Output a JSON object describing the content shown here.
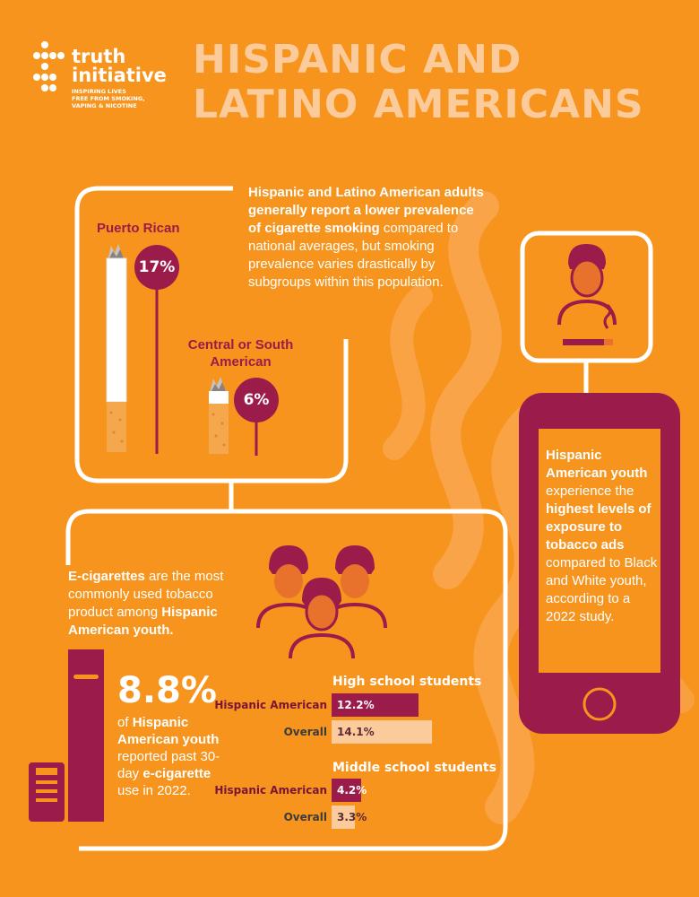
{
  "brand": {
    "name_line1": "truth",
    "name_line2": "initiative",
    "tagline": [
      "INSPIRING LIVES",
      "FREE FROM SMOKING,",
      "VAPING & NICOTINE"
    ],
    "logo": "truth-initiative-dots-logo"
  },
  "title": {
    "line1": "HISPANIC AND",
    "line2": "LATINO AMERICANS"
  },
  "adult_smoking": {
    "description_bold": "Hispanic and Latino American adults generally report a lower prevalence of cigarette smoking",
    "description_regular": " compared to national averages, but smoking prevalence varies drastically by subgroups within this population.",
    "groups": [
      {
        "label": "Puerto Rican",
        "value": "17%",
        "percent": 17
      },
      {
        "label": "Central or South American",
        "value": "6%",
        "percent": 6
      }
    ]
  },
  "ads": {
    "t1": "Hispanic American youth",
    "t2": " experience the ",
    "t3": "highest levels of exposure to tobacco ads",
    "t4": " compared to Black and White youth, according to a 2022 study."
  },
  "ecig": {
    "intro_bold1": "E-cigarettes",
    "intro_reg1": " are the most commonly used tobacco product among ",
    "intro_bold2": "Hispanic American youth.",
    "stat": "8.8%",
    "stat_text_reg1": "of ",
    "stat_text_bold1": "Hispanic American youth",
    "stat_text_reg2": " reported past 30-day ",
    "stat_text_bold2": "e-cigarette",
    "stat_text_reg3": " use in 2022."
  },
  "chart_data": [
    {
      "type": "bar",
      "title": "High school students",
      "categories": [
        "Hispanic American",
        "Overall"
      ],
      "values": [
        12.2,
        14.1
      ],
      "labels": [
        "12.2%",
        "14.1%"
      ]
    },
    {
      "type": "bar",
      "title": "Middle school students",
      "categories": [
        "Hispanic American",
        "Overall"
      ],
      "values": [
        4.2,
        3.3
      ],
      "labels": [
        "4.2%",
        "3.3%"
      ]
    }
  ],
  "colors": {
    "background": "#F7941D",
    "maroon": "#9B1B4A",
    "light_peach": "#FCCB9B",
    "white": "#FFFFFF"
  }
}
